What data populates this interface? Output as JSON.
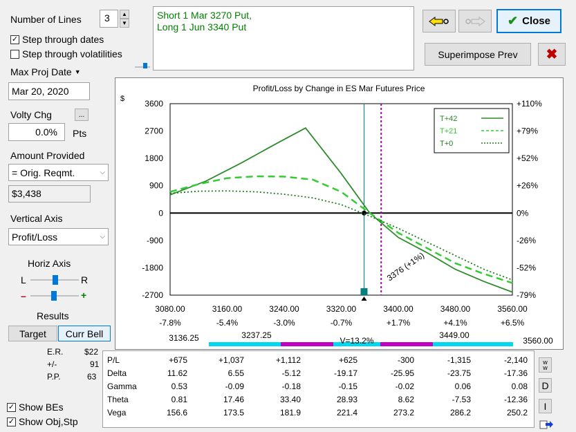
{
  "controls": {
    "lines_label": "Number of Lines",
    "lines_value": "3",
    "step_dates_label": "Step through dates",
    "step_dates_checked": true,
    "step_vol_label": "Step through volatilities",
    "step_vol_checked": false,
    "max_proj_label": "Max Proj Date",
    "max_proj_value": "Mar 20, 2020",
    "volty_label": "Volty Chg",
    "volty_btn": "...",
    "volty_value": "0.0%",
    "volty_unit": "Pts",
    "amount_label": "Amount Provided",
    "amount_select": "= Orig. Reqmt.",
    "amount_value": "$3,438",
    "vert_axis_label": "Vertical Axis",
    "vert_axis_select": "Profit/Loss",
    "horiz_axis_label": "Horiz Axis",
    "slider_l": "L",
    "slider_r": "R",
    "slider_minus": "–",
    "slider_plus": "+",
    "results_label": "Results",
    "target_btn": "Target",
    "curr_bell_btn": "Curr Bell",
    "show_bes_label": "Show BEs",
    "show_bes_checked": true,
    "show_obj_label": "Show Obj,Stp",
    "show_obj_checked": true
  },
  "position": {
    "line1": "Short 1 Mar 3270 Put,",
    "line2": "Long 1 Jun 3340 Put"
  },
  "toolbar": {
    "close_label": "Close",
    "superimpose_label": "Superimpose Prev"
  },
  "side_stats": {
    "er_label": "E.R.",
    "er_value": "$22",
    "pm_label": "+/-",
    "pm_value": "91",
    "pp_label": "P.P.",
    "pp_value": "63"
  },
  "chart_data": {
    "type": "line",
    "title": "Profit/Loss by Change in ES Mar Futures Price",
    "ylabel": "$",
    "xlim": [
      3080,
      3560
    ],
    "ylim": [
      -2700,
      3600
    ],
    "x_ticks": [
      "3080.00",
      "3160.00",
      "3240.00",
      "3320.00",
      "3400.00",
      "3480.00",
      "3560.00"
    ],
    "x_pct_ticks": [
      "-7.8%",
      "-5.4%",
      "-3.0%",
      "-0.7%",
      "+1.7%",
      "+4.1%",
      "+6.5%"
    ],
    "y_ticks": [
      "3600",
      "2700",
      "1800",
      "900",
      "0",
      "-900",
      "-1800",
      "-2700"
    ],
    "y_pct_ticks": [
      "+110%",
      "+79%",
      "+52%",
      "+26%",
      "0%",
      "-26%",
      "-52%",
      "-79%"
    ],
    "current_price": 3352,
    "breakeven_annotation": "3376 (+1%)",
    "breakeven_x": 3376,
    "series": [
      {
        "name": "T+42",
        "style": "solid",
        "color": "#2e8b2e",
        "x": [
          3080,
          3130,
          3180,
          3230,
          3270,
          3320,
          3360,
          3400,
          3440,
          3480,
          3520,
          3560
        ],
        "y": [
          600,
          1050,
          1650,
          2300,
          2800,
          1300,
          0,
          -800,
          -1300,
          -1850,
          -2250,
          -2600
        ]
      },
      {
        "name": "T+21",
        "style": "dash",
        "color": "#33cc33",
        "x": [
          3080,
          3120,
          3160,
          3200,
          3240,
          3280,
          3320,
          3360,
          3400,
          3440,
          3480,
          3520,
          3560
        ],
        "y": [
          700,
          950,
          1150,
          1210,
          1200,
          1100,
          700,
          0,
          -650,
          -1150,
          -1650,
          -2000,
          -2300
        ]
      },
      {
        "name": "T+0",
        "style": "dot",
        "color": "#1f7a1f",
        "x": [
          3080,
          3120,
          3160,
          3200,
          3240,
          3280,
          3320,
          3360,
          3400,
          3440,
          3480,
          3520,
          3560
        ],
        "y": [
          650,
          720,
          730,
          700,
          620,
          500,
          280,
          -100,
          -500,
          -950,
          -1400,
          -1850,
          -2200
        ]
      }
    ],
    "std_band": {
      "low_outer": "3136.25",
      "low_inner": "3237.25",
      "label": "V=13.2%",
      "high_inner": "3449.00",
      "high_outer": "3560.00"
    }
  },
  "table": {
    "rows": [
      {
        "label": "P/L",
        "values": [
          "+675",
          "+1,037",
          "+1,112",
          "+625",
          "-300",
          "-1,315",
          "-2,140"
        ]
      },
      {
        "label": "Delta",
        "values": [
          "11.62",
          "6.55",
          "-5.12",
          "-19.17",
          "-25.95",
          "-23.75",
          "-17.36"
        ]
      },
      {
        "label": "Gamma",
        "values": [
          "0.53",
          "-0.09",
          "-0.18",
          "-0.15",
          "-0.02",
          "0.06",
          "0.08"
        ]
      },
      {
        "label": "Theta",
        "values": [
          "0.81",
          "17.46",
          "33.40",
          "28.93",
          "8.62",
          "-7.53",
          "-12.36"
        ]
      },
      {
        "label": "Vega",
        "values": [
          "156.6",
          "173.5",
          "181.9",
          "221.4",
          "273.2",
          "286.2",
          "250.2"
        ]
      }
    ],
    "side_buttons": [
      "w",
      "D",
      "I"
    ]
  },
  "colors": {
    "green_text": "#008000",
    "arrow_yellow": "#ffe000",
    "delete_red": "#c00000",
    "band_cyan": "#00d8f0",
    "band_purple": "#c000c0",
    "marker_teal": "#00807f"
  }
}
